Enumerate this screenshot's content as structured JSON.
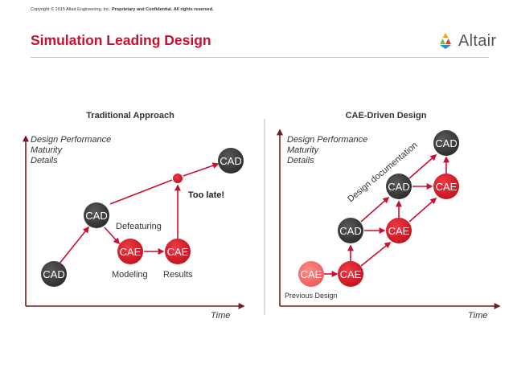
{
  "header": {
    "copyright": "Copyright © 2015 Altair Engineering, Inc.",
    "copyright_strong": "Proprietary and Confidential. All rights reserved.",
    "title": "Simulation Leading Design",
    "logo_text": "Altair"
  },
  "left": {
    "title": "Traditional Approach",
    "y_axis": [
      "Design Performance",
      "Maturity",
      "Details"
    ],
    "x_axis": "Time",
    "nodes": {
      "cad1": "CAD",
      "cad2": "CAD",
      "cae1": "CAE",
      "cae2": "CAE",
      "cad3": "CAD"
    },
    "labels": {
      "defeaturing": "Defeaturing",
      "modeling": "Modeling",
      "results": "Results",
      "too_late": "Too late!"
    }
  },
  "right": {
    "title": "CAE-Driven Design",
    "y_axis": [
      "Design Performance",
      "Maturity",
      "Details"
    ],
    "x_axis": "Time",
    "nodes": {
      "cae_prev": "CAE",
      "cae_a": "CAE",
      "cad_a": "CAD",
      "cae_b": "CAE",
      "cad_b": "CAD",
      "cae_c": "CAE",
      "cad_c": "CAD"
    },
    "labels": {
      "previous": "Previous Design",
      "documentation": "Design documentation"
    }
  },
  "colors": {
    "brand_red": "#c8102e",
    "node_red": "#d9192b",
    "node_dark": "#3b3b3b",
    "node_light_red": "#f26b6b",
    "axis": "#7a1a1f"
  }
}
